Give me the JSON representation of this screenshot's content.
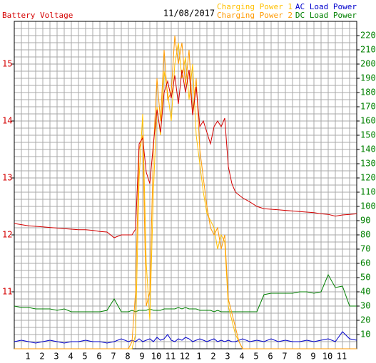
{
  "chart_data": {
    "type": "line",
    "title": "11/08/2017",
    "grid": true,
    "x": [
      0,
      0.5,
      1,
      1.5,
      2,
      2.5,
      3,
      3.5,
      4,
      4.5,
      5,
      5.5,
      6,
      6.5,
      7,
      7.5,
      8,
      8.25,
      8.5,
      8.75,
      9,
      9.25,
      9.5,
      9.75,
      10,
      10.25,
      10.5,
      10.75,
      11,
      11.25,
      11.5,
      11.75,
      12,
      12.25,
      12.5,
      12.75,
      13,
      13.25,
      13.5,
      13.75,
      14,
      14.25,
      14.5,
      14.75,
      15,
      15.25,
      15.5,
      15.75,
      16,
      16.5,
      17,
      17.5,
      18,
      18.5,
      19,
      19.5,
      20,
      20.5,
      21,
      21.5,
      22,
      22.5,
      23,
      23.5,
      24
    ],
    "xlim": [
      0,
      24
    ],
    "xticks": [
      1,
      2,
      3,
      4,
      5,
      6,
      7,
      8,
      9,
      10,
      11,
      12,
      {
        "value": 13,
        "label": "1"
      },
      {
        "value": 14,
        "label": "2"
      },
      {
        "value": 15,
        "label": "3"
      },
      {
        "value": 16,
        "label": "4"
      },
      {
        "value": 17,
        "label": "5"
      },
      {
        "value": 18,
        "label": "6"
      },
      {
        "value": 19,
        "label": "7"
      },
      {
        "value": 20,
        "label": "8"
      },
      {
        "value": 21,
        "label": "9"
      },
      {
        "value": 22,
        "label": "10"
      },
      {
        "value": 23,
        "label": "11"
      }
    ],
    "ylim": [
      10,
      15.75
    ],
    "yticks": [
      11,
      12,
      13,
      14,
      15
    ],
    "y2lim": [
      0,
      230
    ],
    "y2ticks": [
      10,
      20,
      30,
      40,
      50,
      60,
      70,
      80,
      90,
      100,
      110,
      120,
      130,
      140,
      150,
      160,
      170,
      180,
      190,
      200,
      210,
      220
    ],
    "series": [
      {
        "name": "Battery Voltage",
        "color": "#d40000",
        "values": [
          12.2,
          12.18,
          12.16,
          12.15,
          12.14,
          12.13,
          12.12,
          12.11,
          12.1,
          12.09,
          12.09,
          12.08,
          12.06,
          12.05,
          11.95,
          12.0,
          12.0,
          12.0,
          12.1,
          13.6,
          13.7,
          13.1,
          12.9,
          13.6,
          14.2,
          13.8,
          14.5,
          14.7,
          14.4,
          14.8,
          14.3,
          14.9,
          14.5,
          14.9,
          14.1,
          14.6,
          13.9,
          14.0,
          13.8,
          13.6,
          13.9,
          14.0,
          13.9,
          14.05,
          13.2,
          12.9,
          12.75,
          12.7,
          12.65,
          12.58,
          12.5,
          12.46,
          12.45,
          12.44,
          12.43,
          12.42,
          12.41,
          12.4,
          12.39,
          12.37,
          12.36,
          12.33,
          12.35,
          12.36,
          12.37
        ]
      },
      {
        "name": "Charging Power 1",
        "color": "#ffc000",
        "axis": "y2",
        "values": [
          0,
          0,
          0,
          0,
          0,
          0,
          0,
          0,
          0,
          0,
          0,
          0,
          0,
          0,
          0,
          0,
          0,
          0,
          10,
          120,
          165,
          60,
          20,
          110,
          170,
          150,
          195,
          180,
          160,
          200,
          215,
          190,
          205,
          175,
          200,
          150,
          130,
          110,
          95,
          90,
          85,
          70,
          80,
          75,
          30,
          20,
          10,
          5,
          0,
          0,
          0,
          0,
          0,
          0,
          0,
          0,
          0,
          0,
          0,
          0,
          0,
          0,
          0,
          0,
          0
        ]
      },
      {
        "name": "Charging Power 2",
        "color": "#ff9900",
        "axis": "y2",
        "values": [
          0,
          0,
          0,
          0,
          0,
          0,
          0,
          0,
          0,
          0,
          0,
          0,
          0,
          0,
          0,
          0,
          0,
          5,
          40,
          140,
          150,
          30,
          40,
          140,
          190,
          160,
          210,
          175,
          180,
          220,
          200,
          215,
          185,
          210,
          165,
          190,
          140,
          120,
          100,
          85,
          80,
          85,
          70,
          80,
          35,
          25,
          15,
          5,
          0,
          0,
          0,
          0,
          0,
          0,
          0,
          0,
          0,
          0,
          0,
          0,
          0,
          0,
          0,
          0,
          0
        ]
      },
      {
        "name": "AC Load Power",
        "color": "#0000cc",
        "axis": "y2",
        "values": [
          5,
          6,
          5,
          4,
          5,
          6,
          5,
          4,
          5,
          5,
          6,
          5,
          5,
          4,
          5,
          7,
          5,
          6,
          5,
          7,
          5,
          6,
          7,
          5,
          8,
          6,
          7,
          10,
          6,
          5,
          7,
          6,
          8,
          7,
          5,
          6,
          7,
          6,
          5,
          6,
          7,
          5,
          6,
          5,
          6,
          5,
          5,
          6,
          7,
          5,
          6,
          5,
          7,
          5,
          6,
          5,
          5,
          6,
          5,
          6,
          7,
          5,
          12,
          7,
          6
        ]
      },
      {
        "name": "DC Load Power",
        "color": "#008000",
        "axis": "y2",
        "values": [
          30,
          29,
          29,
          28,
          28,
          28,
          27,
          28,
          26,
          26,
          26,
          26,
          26,
          27,
          35,
          26,
          26,
          27,
          26,
          27,
          27,
          27,
          28,
          27,
          27,
          27,
          28,
          28,
          28,
          28,
          29,
          28,
          29,
          28,
          28,
          28,
          27,
          27,
          27,
          27,
          26,
          27,
          26,
          26,
          26,
          26,
          26,
          26,
          26,
          26,
          26,
          38,
          39,
          39,
          39,
          39,
          40,
          40,
          39,
          40,
          52,
          43,
          44,
          30,
          30
        ]
      }
    ]
  }
}
